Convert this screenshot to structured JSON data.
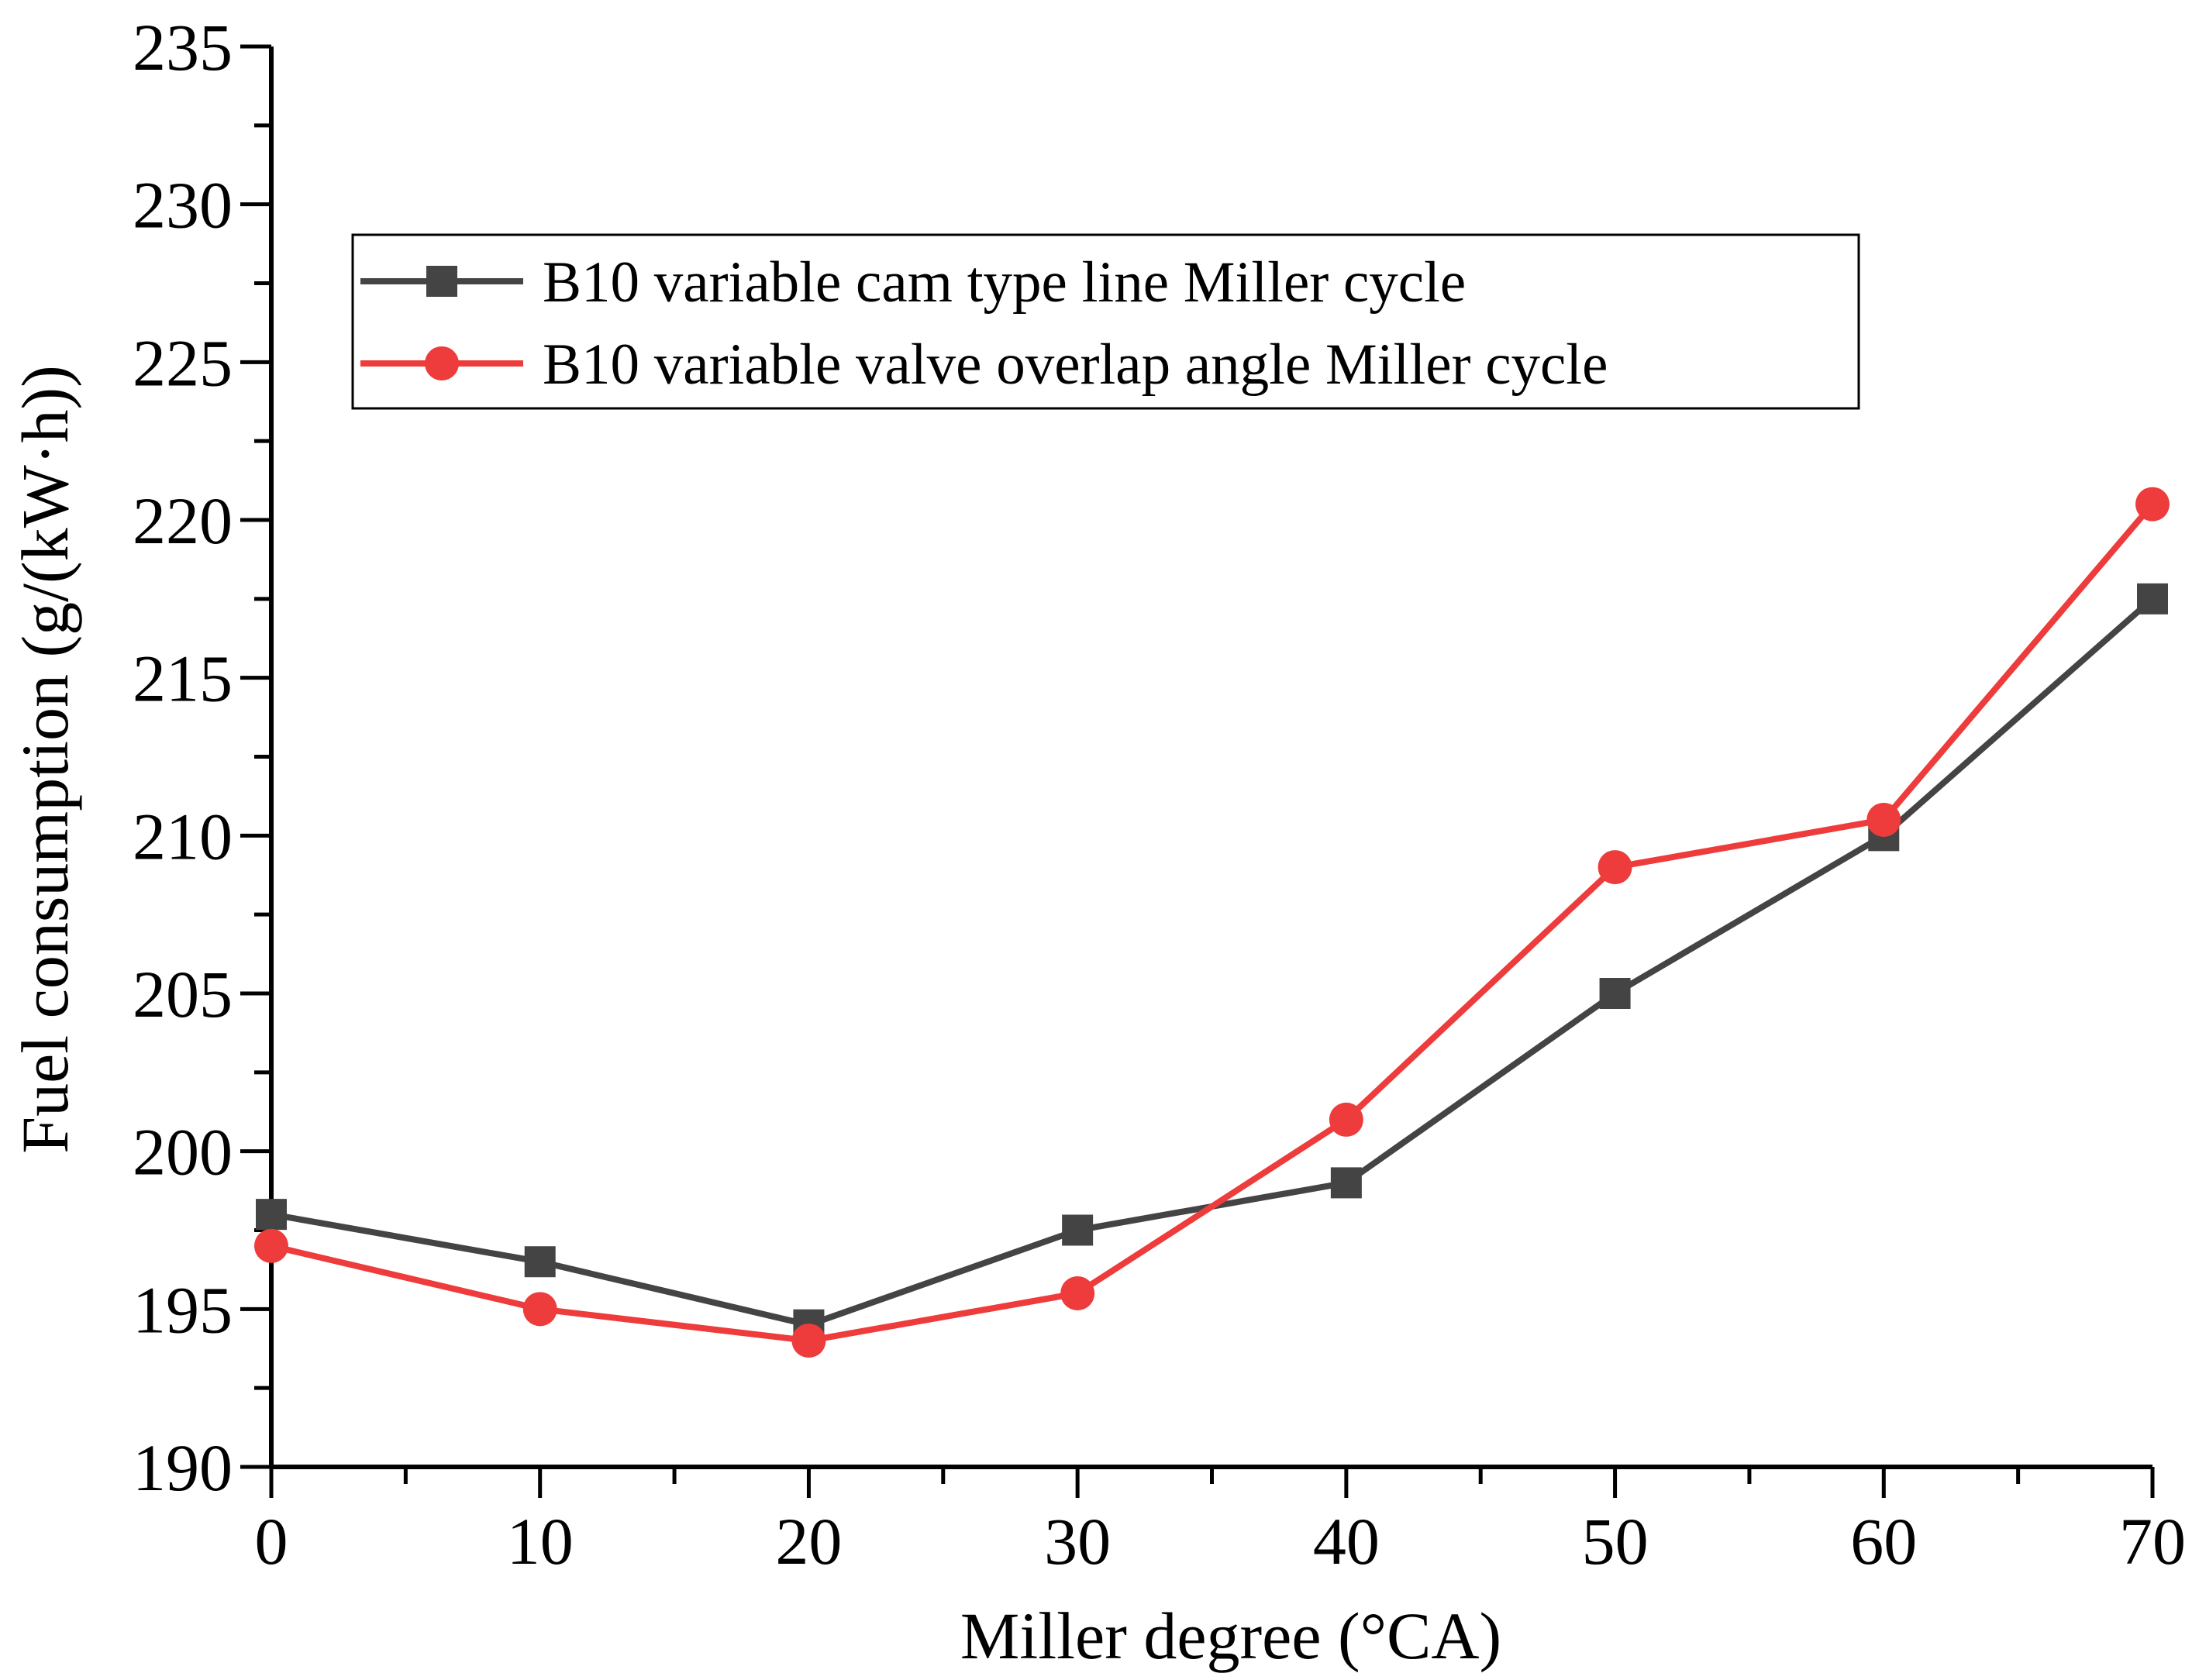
{
  "chart_data": {
    "type": "line",
    "title": "",
    "xlabel": "Miller degree (°CA)",
    "ylabel": "Fuel consumption (g/(kW·h))",
    "xlim": [
      0,
      70
    ],
    "ylim": [
      190,
      235
    ],
    "x_ticks": [
      0,
      10,
      20,
      30,
      40,
      50,
      60,
      70
    ],
    "x_tick_labels": [
      "0",
      "10",
      "20",
      "30",
      "40",
      "50",
      "60",
      "70"
    ],
    "y_ticks": [
      190,
      195,
      200,
      205,
      210,
      215,
      220,
      225,
      230,
      235
    ],
    "y_tick_labels": [
      "190",
      "195",
      "200",
      "205",
      "210",
      "215",
      "220",
      "225",
      "230",
      "235"
    ],
    "grid": false,
    "legend_position": "top-left",
    "x": [
      0,
      10,
      20,
      30,
      40,
      50,
      60,
      70
    ],
    "series": [
      {
        "name": "B10 variable cam type line Miller cycle",
        "marker": "square",
        "color": "#444444",
        "values": [
          198,
          196.5,
          194.5,
          197.5,
          199,
          205,
          210,
          217.5
        ]
      },
      {
        "name": "B10 variable valve overlap angle Miller cycle",
        "marker": "circle",
        "color": "#ee3b3b",
        "values": [
          197,
          195,
          194,
          195.5,
          201,
          209,
          210.5,
          220.5
        ]
      }
    ]
  }
}
